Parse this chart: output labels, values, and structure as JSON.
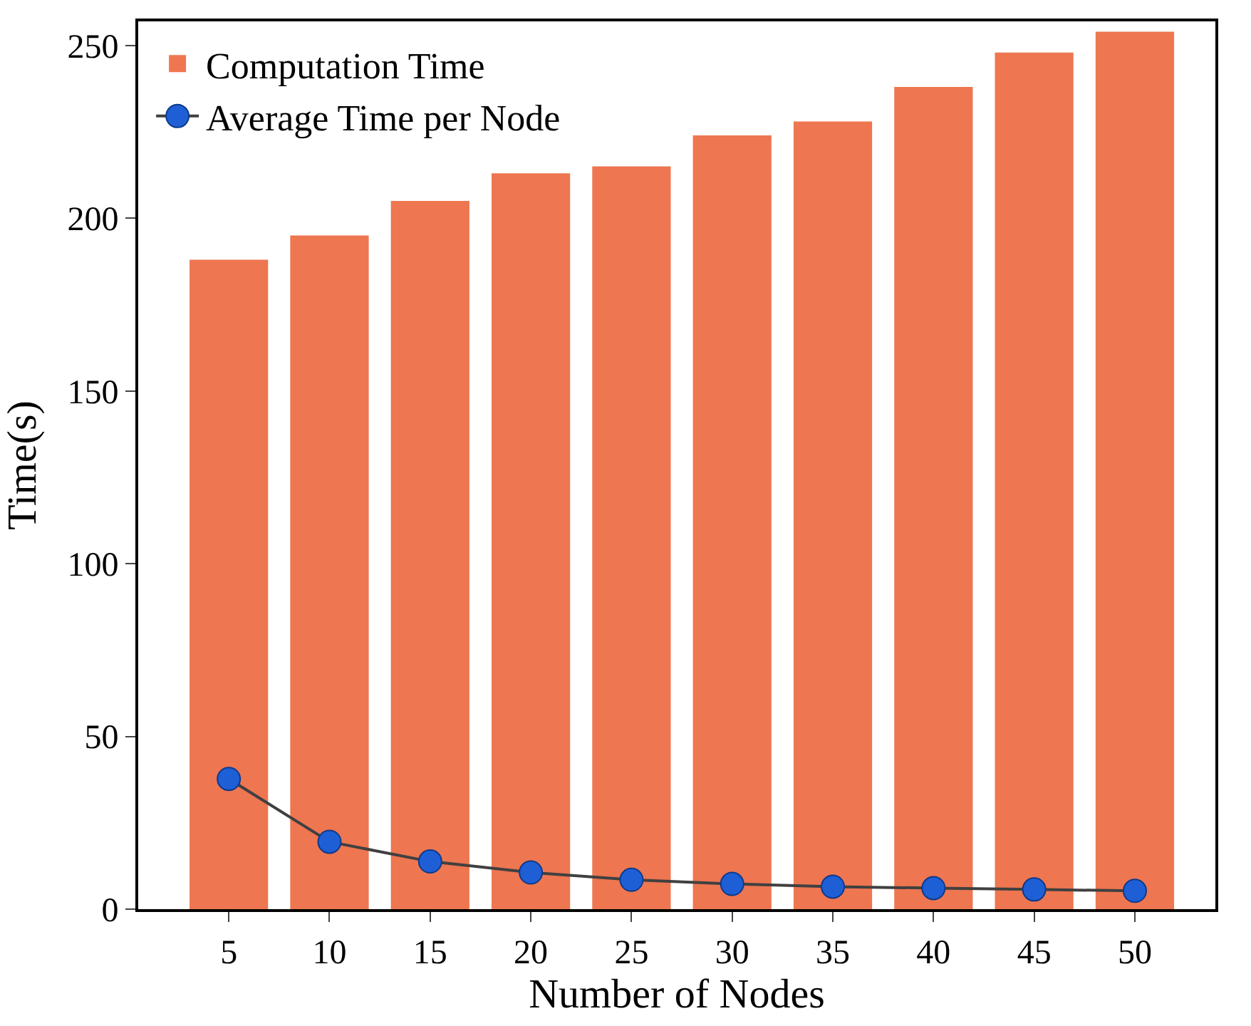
{
  "chart_data": {
    "type": "bar",
    "xlabel": "Number of Nodes",
    "ylabel": "Time(s)",
    "categories": [
      "5",
      "10",
      "15",
      "20",
      "25",
      "30",
      "35",
      "40",
      "45",
      "50"
    ],
    "series": [
      {
        "name": "Computation Time",
        "color": "#ee7650",
        "values": [
          188,
          195,
          205,
          213,
          215,
          224,
          228,
          238,
          248,
          254
        ]
      },
      {
        "name": "Average Time per Node",
        "type": "line",
        "color": "#1f5fd6",
        "values": [
          37.7,
          19.5,
          13.8,
          10.6,
          8.5,
          7.3,
          6.5,
          6.1,
          5.7,
          5.3
        ]
      }
    ],
    "ylim": [
      0,
      257
    ],
    "yticks": [
      0,
      50,
      100,
      150,
      200,
      250
    ],
    "legend": "top left",
    "marker": "circle",
    "line_style": "solid"
  }
}
